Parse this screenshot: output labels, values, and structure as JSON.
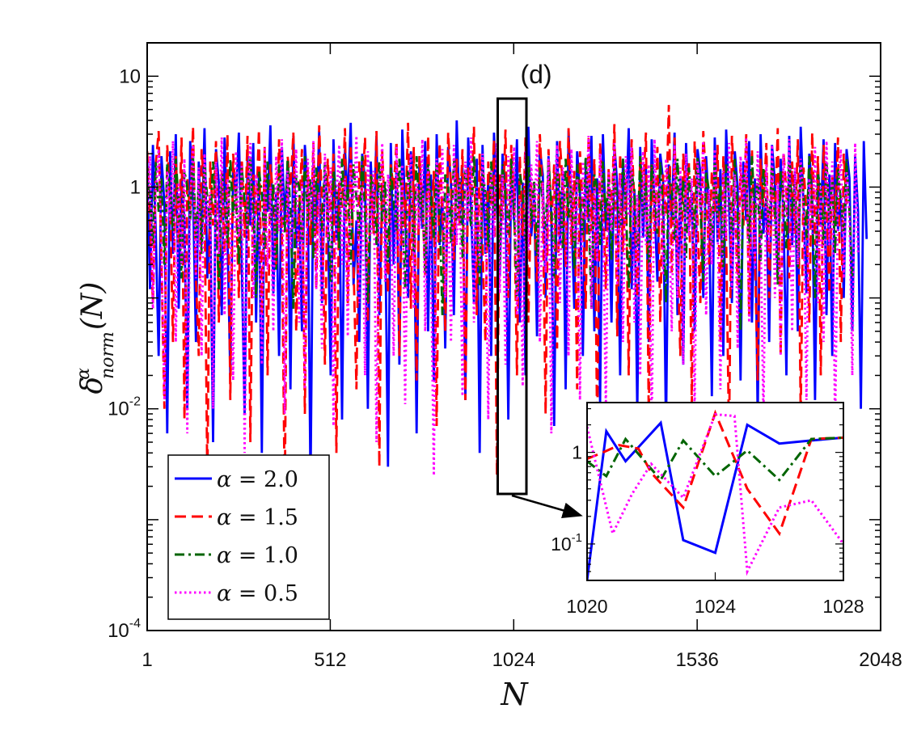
{
  "chart_data": {
    "type": "line",
    "panel_label": "(d)",
    "xlabel": "N",
    "ylabel": "δ^α_norm(N)",
    "ylabel_parts": {
      "base": "δ",
      "sup": "α",
      "sub": "norm",
      "arg": "(N)"
    },
    "yscale": "log",
    "xlim": [
      1,
      2048
    ],
    "ylim": [
      0.0001,
      20
    ],
    "xticks": [
      {
        "value": 1,
        "label": "1"
      },
      {
        "value": 512,
        "label": "512"
      },
      {
        "value": 1024,
        "label": "1024"
      },
      {
        "value": 1536,
        "label": "1536"
      },
      {
        "value": 2048,
        "label": "2048"
      }
    ],
    "yticks": [
      {
        "value": 10,
        "label": "10"
      },
      {
        "value": 1,
        "label": "1"
      },
      {
        "value": 0.01,
        "label_base": "10",
        "label_exp": "-2"
      },
      {
        "value": 0.0001,
        "label_base": "10",
        "label_exp": "-4"
      }
    ],
    "series": [
      {
        "name": "α = 2.0",
        "legend_lhs": "α",
        "legend_rhs": "= 2.0",
        "color": "#0000ff",
        "dash": "solid"
      },
      {
        "name": "α = 1.5",
        "legend_lhs": "α",
        "legend_rhs": "= 1.5",
        "color": "#ff0000",
        "dash": "dashed"
      },
      {
        "name": "α = 1.0",
        "legend_lhs": "α",
        "legend_rhs": "= 1.0",
        "color": "#006400",
        "dash": "dashdot"
      },
      {
        "name": "α = 0.5",
        "legend_lhs": "α",
        "legend_rhs": "= 0.5",
        "color": "#ff00ff",
        "dash": "dotted"
      }
    ],
    "series_samples": {
      "x_step": 8,
      "note": "approximate representative values, one per 8 N",
      "values": [
        [
          1.8,
          0.12,
          2.4,
          0.4,
          0.03,
          1.9,
          0.7,
          0.006,
          2.1,
          0.25,
          3.0,
          0.08,
          1.2,
          0.5,
          0.01,
          2.6,
          0.9,
          0.04,
          1.7,
          0.3,
          3.4,
          0.15,
          0.6,
          0.005,
          2.2,
          1.1,
          0.07,
          2.8,
          0.35,
          0.02,
          1.5,
          0.8,
          3.1,
          0.2,
          0.009,
          1.9,
          0.45,
          2.5,
          0.06,
          1.3,
          0.004,
          2.0,
          0.6,
          3.6,
          0.11,
          0.9,
          0.03,
          2.3,
          0.5,
          1.6,
          0.015,
          2.9,
          0.28,
          0.7,
          0.05,
          2.4,
          1.0,
          0.002,
          1.8,
          0.4,
          3.2,
          0.09,
          1.4,
          0.6,
          0.02,
          2.7,
          0.33,
          1.1,
          0.008,
          2.2,
          0.75,
          3.8,
          0.13,
          0.5,
          0.04,
          2.0,
          1.2,
          0.01,
          1.7,
          0.38,
          2.9,
          0.07,
          1.0,
          0.55,
          0.003,
          2.5,
          0.2,
          1.6,
          0.025,
          3.3,
          0.6,
          0.1,
          2.1,
          0.9,
          0.006,
          1.9,
          0.42,
          2.6,
          0.05,
          1.3,
          0.018,
          3.0,
          0.3,
          0.8,
          0.035,
          2.3,
          1.1,
          0.07,
          4.0,
          0.45,
          1.5,
          0.012,
          2.8,
          0.65,
          0.09,
          1.8,
          0.004,
          2.4,
          0.25,
          1.2,
          0.03,
          3.1,
          0.7,
          0.16,
          2.0,
          0.95,
          0.008,
          1.6,
          0.5,
          2.7,
          0.06,
          1.1,
          0.02,
          3.5,
          0.36,
          0.85,
          0.045,
          2.2,
          1.3,
          0.1,
          1.9,
          0.55,
          0.007,
          2.6,
          0.3,
          1.4,
          0.015,
          3.2,
          0.62,
          0.08,
          2.1,
          0.9,
          0.03,
          1.7,
          0.48,
          2.9,
          0.05,
          1.2,
          0.011,
          3.0,
          0.4,
          0.75,
          0.06,
          2.4,
          1.05,
          0.02,
          1.8,
          0.58,
          3.4,
          0.12,
          0.95,
          0.009,
          2.3,
          0.35,
          1.5,
          0.04,
          2.7,
          0.68,
          0.14,
          2.0,
          1.15,
          0.006,
          1.6,
          0.52,
          3.1,
          0.07,
          1.25,
          0.025,
          2.5,
          0.42,
          0.88,
          0.05,
          2.2,
          1.35,
          0.1,
          1.9,
          0.6,
          0.013,
          2.8,
          0.32,
          1.45,
          0.03,
          3.3,
          0.72,
          0.09,
          2.1,
          0.98,
          0.018,
          1.7,
          0.5,
          2.6,
          0.06,
          1.2,
          0.008,
          3.0,
          0.38,
          0.82,
          0.04,
          2.4,
          1.1,
          0.15,
          1.8,
          0.57,
          0.02,
          2.9,
          0.3,
          1.4,
          0.05,
          3.5,
          0.66,
          0.11,
          2.0,
          0.93,
          0.012,
          1.6,
          0.46,
          2.7,
          0.07,
          1.3,
          0.03,
          2.5,
          0.4,
          0.8,
          0.1,
          2.2,
          1.2,
          0.05,
          1.9,
          0.6,
          0.01,
          2.6,
          0.34
        ],
        [
          2.1,
          0.5,
          0.09,
          1.6,
          3.2,
          0.2,
          0.01,
          2.4,
          0.7,
          0.04,
          1.9,
          0.3,
          2.8,
          0.008,
          1.2,
          0.6,
          3.5,
          0.15,
          0.03,
          2.2,
          0.9,
          0.002,
          1.7,
          0.45,
          2.6,
          0.06,
          1.4,
          0.25,
          3.0,
          0.012,
          2.0,
          0.75,
          0.1,
          1.8,
          0.35,
          2.9,
          0.005,
          1.3,
          0.55,
          3.3,
          0.07,
          2.3,
          0.02,
          1.6,
          0.8,
          0.18,
          2.7,
          0.4,
          0.0015,
          1.9,
          1.0,
          3.1,
          0.05,
          0.6,
          2.2,
          0.009,
          1.5,
          0.3,
          2.5,
          0.12,
          3.6,
          0.7,
          0.025,
          1.8,
          0.48,
          2.0,
          0.004,
          1.1,
          0.65,
          3.4,
          0.09,
          2.4,
          0.2,
          0.015,
          1.7,
          0.85,
          2.8,
          0.06,
          1.3,
          0.38,
          3.2,
          0.003,
          2.1,
          0.52,
          0.11,
          1.6,
          0.95,
          2.6,
          0.03,
          1.2,
          0.42,
          3.8,
          0.08,
          2.3,
          0.018,
          1.9,
          0.72,
          0.16,
          2.9,
          0.33,
          1.4,
          0.007,
          2.5,
          0.6,
          0.05,
          3.1,
          1.05,
          0.22,
          1.8,
          0.45,
          2.2,
          0.012,
          1.5,
          0.8,
          3.5,
          0.07,
          2.0,
          0.28,
          0.04,
          1.7,
          0.68,
          2.7,
          0.0025,
          1.3,
          0.5,
          3.3,
          0.1,
          2.4,
          0.9,
          0.02,
          1.9,
          0.36,
          2.8,
          0.06,
          1.1,
          0.58,
          0.14,
          3.0,
          0.8,
          0.009,
          2.2,
          0.44,
          1.6,
          0.035,
          2.6,
          1.0,
          0.19,
          3.4,
          0.3,
          1.4,
          0.015,
          2.1,
          0.62,
          0.08,
          2.9,
          0.4,
          1.8,
          0.006,
          2.5,
          0.85,
          0.12,
          1.5,
          0.5,
          3.7,
          0.045,
          2.0,
          0.26,
          1.2,
          0.02,
          2.7,
          0.7,
          0.1,
          1.9,
          0.95,
          3.1,
          0.008,
          1.6,
          0.4,
          2.3,
          0.06,
          1.3,
          0.55,
          5.5,
          0.17,
          2.8,
          0.3,
          0.03,
          2.0,
          0.78,
          1.7,
          0.011,
          2.6,
          0.48,
          0.09,
          3.2,
          1.1,
          0.2,
          1.4,
          0.6,
          2.4,
          0.04,
          1.9,
          0.35,
          0.005,
          2.9,
          0.82,
          0.13,
          1.6,
          0.45,
          3.0,
          0.07,
          2.2,
          0.25,
          0.018,
          1.8,
          0.66,
          2.5,
          0.1,
          1.2,
          0.5,
          3.4,
          0.03,
          2.1,
          0.9,
          0.15,
          1.7,
          0.38,
          2.7,
          0.008,
          1.5,
          0.6,
          0.06,
          3.1,
          0.3,
          1.9,
          0.02,
          2.4,
          0.75,
          0.11,
          1.3,
          0.5,
          2.8,
          0.04,
          2.0,
          0.7
        ],
        [
          1.5,
          0.8,
          0.3,
          1.7,
          0.6,
          1.2,
          0.2,
          1.6,
          0.9,
          0.4,
          1.8,
          0.7,
          0.15,
          1.4,
          1.0,
          0.5,
          1.9,
          0.35,
          1.1,
          0.25,
          1.6,
          0.8,
          0.45,
          1.7,
          0.6,
          0.12,
          1.3,
          0.95,
          0.3,
          1.8,
          0.55,
          1.0,
          0.2,
          1.5,
          0.75,
          0.4,
          1.9,
          0.65,
          0.1,
          1.4,
          0.9,
          0.28,
          1.7,
          0.5,
          1.1,
          0.18,
          1.6,
          0.85,
          0.38,
          1.8,
          0.6,
          0.08,
          1.3,
          1.0,
          0.32,
          1.9,
          0.5,
          1.2,
          0.22,
          1.5,
          0.7,
          0.42,
          1.7,
          0.62,
          0.14,
          1.4,
          0.92,
          0.27,
          1.8,
          0.55,
          1.05,
          0.2,
          1.6,
          0.8,
          0.36,
          1.9,
          0.58,
          0.09,
          1.3,
          0.98,
          0.3,
          1.7,
          0.48,
          1.15,
          0.21,
          1.5,
          0.72,
          0.4,
          1.8,
          0.64,
          0.12,
          1.4,
          0.9,
          0.26,
          1.9,
          0.52,
          1.0,
          0.17,
          1.6,
          0.82,
          0.35,
          1.7,
          0.6,
          0.07,
          1.3,
          1.02,
          0.31,
          1.8,
          0.5,
          1.2,
          0.23,
          1.5,
          0.76,
          0.44,
          1.9,
          0.63,
          0.13,
          1.4,
          0.88,
          0.29,
          1.7,
          0.54,
          1.1,
          0.19,
          1.6,
          0.8,
          0.37,
          1.8,
          0.59,
          0.1,
          1.3,
          0.96,
          0.33,
          1.9,
          0.47,
          1.15,
          0.24,
          1.5,
          0.7,
          0.41,
          1.7,
          0.66,
          0.15,
          1.4,
          0.93,
          0.27,
          1.8,
          0.53,
          1.05,
          0.18,
          1.6,
          0.83,
          0.36,
          1.9,
          0.6,
          0.08,
          1.3,
          1.0,
          0.3,
          1.7,
          0.5,
          1.2,
          0.22,
          1.5,
          0.74,
          0.43,
          1.8,
          0.64,
          0.12,
          1.4,
          0.9,
          0.28,
          1.9,
          0.55,
          1.1,
          0.2,
          1.6,
          0.8,
          0.38,
          1.7,
          0.6,
          0.09,
          1.3,
          0.97,
          0.32,
          1.8,
          0.49,
          1.18,
          0.23,
          1.5,
          0.72,
          0.42,
          1.9,
          0.65,
          0.14,
          1.4,
          0.91,
          0.29,
          1.7,
          0.54,
          1.06,
          0.19,
          1.6,
          0.84,
          0.37,
          1.8,
          0.61,
          0.05,
          1.3,
          1.0,
          0.31,
          1.9,
          0.5,
          1.2,
          0.21,
          1.5,
          0.76,
          0.44,
          1.7,
          0.62,
          0.13,
          1.4,
          0.89,
          0.28,
          1.8,
          0.56,
          1.1,
          0.19,
          1.6,
          0.82,
          0.35,
          1.9,
          0.6,
          0.1,
          1.3,
          0.98,
          0.3,
          1.7,
          0.5,
          1.2,
          0.25,
          1.5,
          0.75,
          0.4,
          1.8,
          0.6,
          0.15
        ],
        [
          0.6,
          1.9,
          0.08,
          0.9,
          2.2,
          0.3,
          0.012,
          1.4,
          0.5,
          2.6,
          0.04,
          1.1,
          0.2,
          1.8,
          0.006,
          0.7,
          2.4,
          0.15,
          1.5,
          0.03,
          2.0,
          0.45,
          0.9,
          0.01,
          1.7,
          0.25,
          2.8,
          0.07,
          1.2,
          0.5,
          0.018,
          2.1,
          0.35,
          1.6,
          0.004,
          0.8,
          2.5,
          0.1,
          1.3,
          0.6,
          0.025,
          2.3,
          0.18,
          1.0,
          0.05,
          1.9,
          0.4,
          2.7,
          0.009,
          1.4,
          0.28,
          0.7,
          2.2,
          0.06,
          1.1,
          0.015,
          1.8,
          0.5,
          2.6,
          0.12,
          0.9,
          0.035,
          2.0,
          0.33,
          1.5,
          0.007,
          0.75,
          2.4,
          0.2,
          1.2,
          0.045,
          1.7,
          0.6,
          2.9,
          0.09,
          1.0,
          0.02,
          2.1,
          0.38,
          1.4,
          0.005,
          0.85,
          2.5,
          0.14,
          1.3,
          0.55,
          0.03,
          2.3,
          0.26,
          1.6,
          0.011,
          0.95,
          2.0,
          0.08,
          1.1,
          0.42,
          2.7,
          0.05,
          1.5,
          0.22,
          0.0025,
          1.8,
          0.62,
          2.2,
          0.1,
          0.9,
          0.04,
          2.4,
          0.3,
          1.2,
          0.013,
          1.7,
          0.48,
          2.8,
          0.06,
          1.0,
          0.19,
          2.0,
          0.7,
          0.008,
          1.4,
          0.35,
          2.5,
          0.11,
          1.3,
          0.025,
          1.9,
          0.52,
          2.3,
          0.07,
          0.8,
          0.016,
          2.1,
          0.27,
          1.6,
          0.45,
          2.6,
          0.04,
          1.1,
          0.17,
          1.8,
          0.006,
          0.9,
          2.4,
          0.09,
          1.5,
          0.6,
          0.03,
          2.2,
          0.32,
          1.2,
          0.012,
          1.7,
          0.5,
          2.9,
          0.08,
          1.0,
          0.21,
          2.0,
          0.66,
          0.01,
          1.4,
          0.4,
          2.5,
          0.13,
          1.3,
          0.04,
          1.9,
          0.55,
          2.3,
          0.06,
          0.85,
          0.02,
          2.1,
          0.3,
          1.6,
          0.005,
          2.7,
          0.44,
          1.1,
          0.16,
          1.8,
          0.7,
          0.05,
          2.4,
          0.1,
          1.5,
          0.025,
          2.0,
          0.36,
          1.2,
          0.009,
          1.7,
          0.58,
          2.6,
          0.07,
          0.95,
          0.2,
          2.2,
          0.48,
          0.015,
          1.4,
          0.34,
          2.5,
          0.12,
          1.3,
          0.035,
          1.9,
          0.62,
          2.8,
          0.06,
          0.9,
          0.18,
          2.1,
          0.42,
          0.008,
          1.6,
          0.28,
          2.4,
          0.1,
          1.1,
          0.03,
          2.0,
          0.55,
          2.7,
          0.05,
          1.5,
          0.2,
          1.8,
          0.65,
          0.012,
          1.2,
          0.38,
          2.3,
          0.09,
          1.0,
          0.04,
          2.6,
          0.3,
          1.7,
          0.006,
          0.8,
          2.2,
          0.15,
          1.4,
          0.5,
          0.02,
          2.5,
          0.25
        ]
      ]
    },
    "highlight_box": {
      "x_range": [
        1020,
        1028
      ]
    },
    "inset": {
      "xlim": [
        1020,
        1028
      ],
      "ylim": [
        0.04,
        3.5
      ],
      "yscale": "log",
      "xticks": [
        {
          "value": 1020,
          "label": "1020"
        },
        {
          "value": 1024,
          "label": "1024"
        },
        {
          "value": 1028,
          "label": "1028"
        }
      ],
      "yticks": [
        {
          "value": 1,
          "label": "1"
        },
        {
          "value": 0.1,
          "label_base": "10",
          "label_exp": "-1"
        }
      ],
      "series": [
        {
          "name": "α = 2.0",
          "x": [
            1020,
            1020.6,
            1021.2,
            1022.3,
            1023.0,
            1024.0,
            1025.0,
            1026.0,
            1027.0,
            1028.0
          ],
          "y": [
            0.04,
            1.7,
            0.8,
            2.1,
            0.11,
            0.08,
            2.0,
            1.25,
            1.35,
            1.45
          ]
        },
        {
          "name": "α = 1.5",
          "x": [
            1020,
            1020.5,
            1021.0,
            1021.6,
            1022.0,
            1023.0,
            1024.0,
            1025.0,
            1026.0,
            1027.0,
            1028.0
          ],
          "y": [
            0.85,
            1.0,
            1.2,
            1.1,
            0.6,
            0.25,
            2.7,
            0.4,
            0.13,
            1.4,
            1.45
          ]
        },
        {
          "name": "α = 1.0",
          "x": [
            1020,
            1020.6,
            1021.2,
            1022.3,
            1023.0,
            1024.0,
            1025.0,
            1026.0,
            1027.0,
            1028.0
          ],
          "y": [
            0.8,
            0.55,
            1.4,
            0.5,
            1.35,
            0.55,
            1.05,
            0.5,
            1.4,
            1.45
          ]
        },
        {
          "name": "α = 0.5",
          "x": [
            1020,
            1020.8,
            1021.4,
            1022.0,
            1023.0,
            1024.0,
            1024.6,
            1025.0,
            1026.0,
            1027.0,
            1028.0
          ],
          "y": [
            1.9,
            0.13,
            0.35,
            0.75,
            0.32,
            2.6,
            2.5,
            0.05,
            0.25,
            0.3,
            0.1
          ]
        }
      ]
    }
  }
}
